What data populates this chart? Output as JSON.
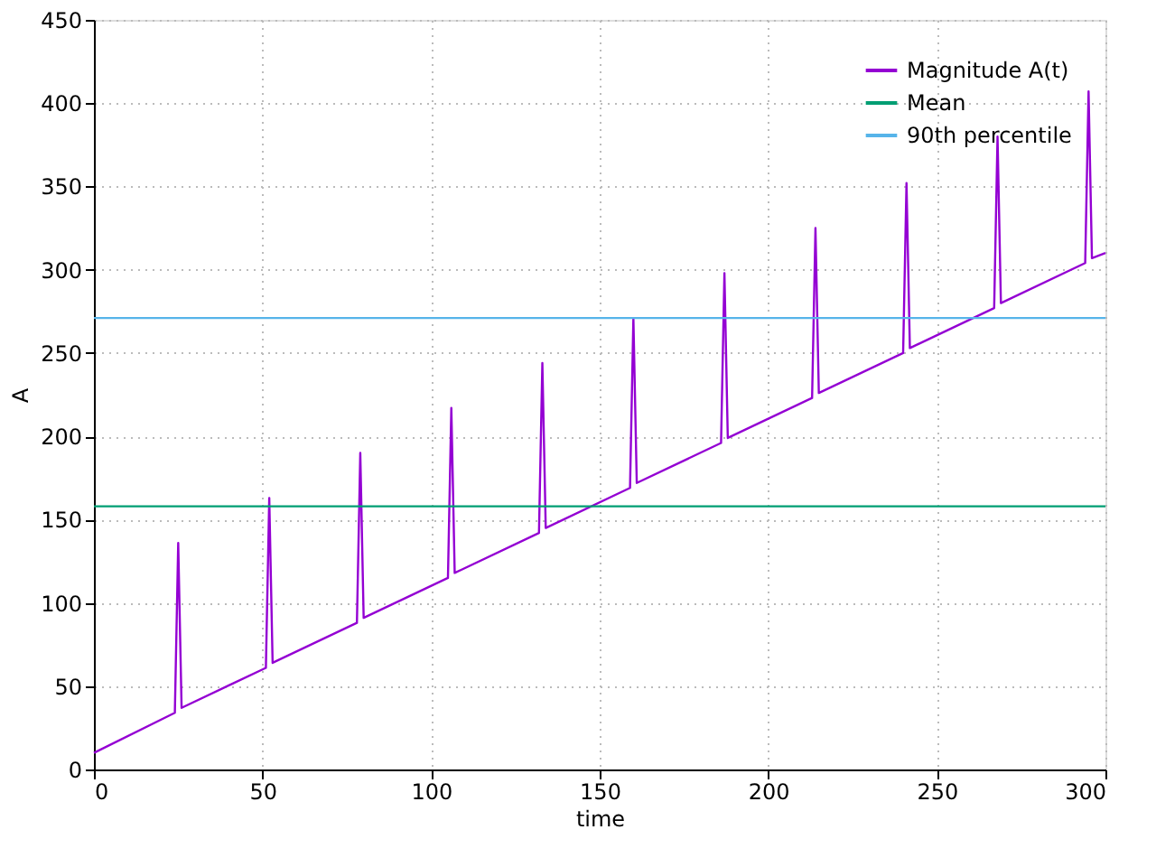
{
  "chart_data": {
    "type": "line",
    "xlabel": "time",
    "ylabel": "A",
    "xlim": [
      0,
      300
    ],
    "ylim": [
      0,
      450
    ],
    "xticks": [
      0,
      50,
      100,
      150,
      200,
      250,
      300
    ],
    "yticks": [
      0,
      50,
      100,
      150,
      200,
      250,
      300,
      350,
      400,
      450
    ],
    "grid": true,
    "legend": "top right",
    "line_style": "solid",
    "marker": "none",
    "series": [
      {
        "name": "Magnitude A(t)",
        "color": "#9400d3",
        "x": [
          0,
          24,
          25,
          26,
          51,
          52,
          53,
          78,
          79,
          80,
          105,
          106,
          107,
          132,
          133,
          134,
          159,
          160,
          161,
          186,
          187,
          188,
          213,
          214,
          215,
          240,
          241,
          242,
          267,
          268,
          269,
          294,
          295,
          296,
          300
        ],
        "values": [
          10,
          34,
          136,
          37,
          61,
          163,
          64,
          88,
          190,
          91,
          115,
          217,
          118,
          142,
          244,
          145,
          169,
          271,
          172,
          196,
          298,
          199,
          223,
          325,
          226,
          250,
          352,
          253,
          277,
          380,
          280,
          304,
          407,
          307,
          310
        ]
      },
      {
        "name": "Mean",
        "color": "#009e73",
        "x": [
          0,
          300
        ],
        "values": [
          158,
          158
        ]
      },
      {
        "name": "90th percentile",
        "color": "#56b4e9",
        "x": [
          0,
          300
        ],
        "values": [
          271,
          271
        ]
      }
    ]
  }
}
